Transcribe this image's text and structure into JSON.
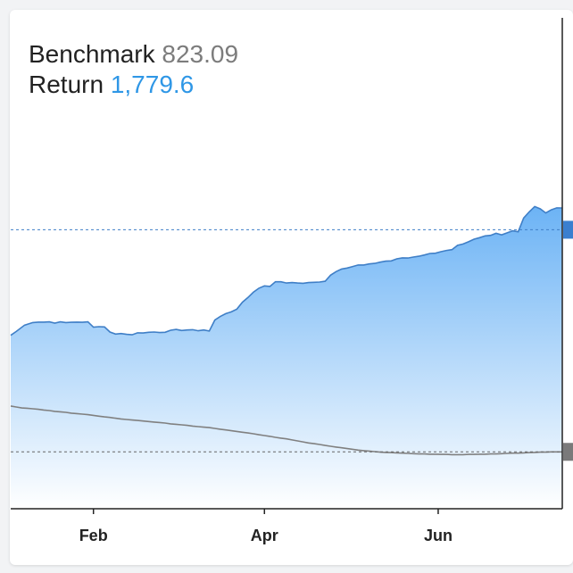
{
  "legend": {
    "benchmark_label": "Benchmark",
    "benchmark_value": "823.09",
    "return_label": "Return",
    "return_value": "1,779.6"
  },
  "colors": {
    "return_line": "#3f7fc7",
    "return_fill_top": "#6cb3f5",
    "benchmark_line": "#808080",
    "return_marker": "#3a7fcf",
    "benchmark_marker": "#7a7a7a"
  },
  "chart_data": {
    "type": "area",
    "x_tick_labels": [
      "Feb",
      "Apr",
      "Jun"
    ],
    "series": [
      {
        "name": "Return",
        "style": "area",
        "x": [
          0,
          2,
          5,
          8,
          10,
          12,
          14,
          16,
          18,
          20,
          22,
          24,
          26,
          28,
          30,
          32,
          34,
          36,
          38,
          40,
          42,
          44,
          46,
          48,
          50,
          52,
          54,
          56,
          58,
          60,
          62,
          64,
          66,
          68,
          70,
          72,
          74,
          76,
          78,
          80,
          82,
          84,
          86,
          88,
          90,
          92,
          94,
          96,
          98,
          100,
          102,
          104,
          106,
          108,
          110,
          112,
          114,
          116,
          118,
          120,
          122,
          124,
          126,
          128,
          130,
          132,
          134,
          136,
          138,
          140,
          142,
          144,
          146,
          148,
          150,
          152,
          154,
          156,
          158,
          160,
          162,
          164,
          166,
          168,
          170,
          172,
          174,
          176,
          178,
          180,
          182,
          184,
          186,
          188,
          190,
          192,
          194,
          196,
          198,
          200
        ],
        "values": [
          1280,
          1295,
          1320,
          1330,
          1332,
          1332,
          1333,
          1328,
          1333,
          1330,
          1331,
          1332,
          1331,
          1333,
          1312,
          1314,
          1313,
          1293,
          1285,
          1287,
          1284,
          1282,
          1290,
          1289,
          1292,
          1293,
          1291,
          1292,
          1300,
          1303,
          1299,
          1301,
          1302,
          1298,
          1301,
          1297,
          1340,
          1354,
          1365,
          1372,
          1383,
          1410,
          1428,
          1449,
          1465,
          1474,
          1472,
          1490,
          1490,
          1485,
          1487,
          1485,
          1484,
          1487,
          1488,
          1489,
          1492,
          1516,
          1530,
          1540,
          1544,
          1550,
          1556,
          1556,
          1560,
          1562,
          1567,
          1571,
          1572,
          1580,
          1584,
          1583,
          1587,
          1590,
          1595,
          1601,
          1602,
          1608,
          1613,
          1616,
          1633,
          1638,
          1647,
          1657,
          1663,
          1670,
          1672,
          1680,
          1674,
          1682,
          1690,
          1686,
          1740,
          1764,
          1785,
          1776,
          1760,
          1772,
          1780,
          1779.6
        ]
      },
      {
        "name": "Benchmark",
        "style": "line",
        "x": [
          0,
          2,
          4,
          6,
          8,
          10,
          12,
          14,
          16,
          18,
          20,
          22,
          24,
          26,
          28,
          30,
          32,
          34,
          36,
          38,
          40,
          42,
          44,
          46,
          48,
          50,
          52,
          54,
          56,
          58,
          60,
          62,
          64,
          66,
          68,
          70,
          72,
          74,
          76,
          78,
          80,
          82,
          84,
          86,
          88,
          90,
          92,
          94,
          96,
          98,
          100,
          102,
          104,
          106,
          108,
          110,
          112,
          114,
          116,
          118,
          120,
          122,
          124,
          126,
          128,
          130,
          132,
          134,
          136,
          138,
          140,
          142,
          144,
          146,
          148,
          150,
          152,
          154,
          156,
          158,
          160,
          162,
          164,
          166,
          168,
          170,
          172,
          174,
          176,
          178,
          180,
          182,
          184,
          186,
          188,
          190,
          192,
          194,
          196,
          198,
          200
        ],
        "values": [
          1003,
          999,
          995,
          994,
          992,
          990,
          987,
          985,
          982,
          980,
          978,
          975,
          973,
          971,
          969,
          966,
          963,
          960,
          958,
          955,
          952,
          950,
          948,
          946,
          944,
          942,
          940,
          938,
          936,
          933,
          931,
          929,
          927,
          924,
          922,
          920,
          918,
          915,
          912,
          909,
          906,
          903,
          900,
          897,
          894,
          890,
          887,
          884,
          880,
          877,
          874,
          870,
          866,
          862,
          858,
          855,
          852,
          848,
          845,
          842,
          839,
          836,
          833,
          830,
          828,
          826,
          824,
          822,
          821,
          820,
          819,
          818,
          817,
          816,
          815,
          815,
          814,
          814,
          813,
          813,
          812,
          812,
          812,
          813,
          813,
          814,
          814,
          815,
          815,
          816,
          817,
          818,
          818,
          819,
          820,
          821,
          822,
          822,
          823,
          823,
          823.09
        ]
      }
    ],
    "reference_lines": [
      1694,
      823.09
    ],
    "ylim": [
      600,
      2000
    ],
    "grid": false,
    "legend_position": "top-left"
  }
}
